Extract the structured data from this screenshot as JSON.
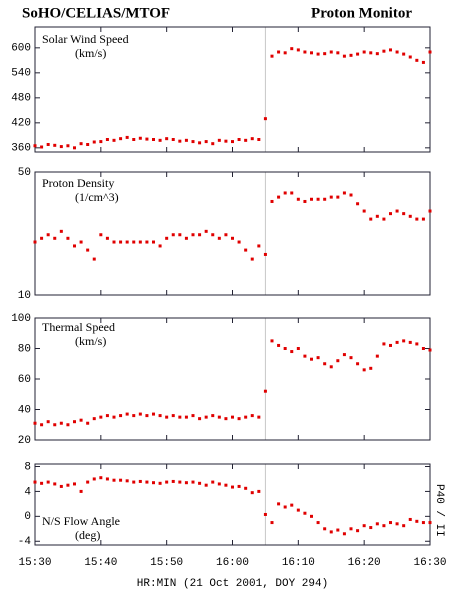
{
  "header": {
    "left": "SoHO/CELIAS/MTOF",
    "right": "Proton Monitor"
  },
  "chart_data": [
    {
      "type": "scatter",
      "title": "Solar Wind Speed",
      "unit": "(km/s)",
      "color": "#e00000",
      "log": false,
      "xlim": [
        930,
        990
      ],
      "vline": 965,
      "ylim": [
        350,
        650
      ],
      "yticks": [
        360,
        420,
        480,
        540,
        600
      ],
      "x": [
        930,
        931,
        932,
        933,
        934,
        935,
        936,
        937,
        938,
        939,
        940,
        941,
        942,
        943,
        944,
        945,
        946,
        947,
        948,
        949,
        950,
        951,
        952,
        953,
        954,
        955,
        956,
        957,
        958,
        959,
        960,
        961,
        962,
        963,
        964,
        965,
        966,
        967,
        968,
        969,
        970,
        971,
        972,
        973,
        974,
        975,
        976,
        977,
        978,
        979,
        980,
        981,
        982,
        983,
        984,
        985,
        986,
        987,
        988,
        989,
        990
      ],
      "values": [
        365,
        362,
        368,
        366,
        363,
        365,
        360,
        370,
        368,
        374,
        375,
        380,
        378,
        382,
        385,
        380,
        383,
        381,
        380,
        378,
        382,
        380,
        376,
        378,
        375,
        372,
        375,
        370,
        378,
        376,
        375,
        380,
        378,
        382,
        380,
        430,
        580,
        590,
        588,
        598,
        595,
        590,
        588,
        585,
        586,
        590,
        588,
        580,
        582,
        585,
        590,
        588,
        586,
        592,
        595,
        590,
        585,
        578,
        570,
        565,
        590
      ]
    },
    {
      "type": "scatter",
      "title": "Proton Density",
      "unit": "(1/cm^3)",
      "color": "#e00000",
      "log": true,
      "xlim": [
        930,
        990
      ],
      "vline": 965,
      "ylim": [
        10,
        50
      ],
      "yticks": [
        10,
        50
      ],
      "x": [
        930,
        931,
        932,
        933,
        934,
        935,
        936,
        937,
        938,
        939,
        940,
        941,
        942,
        943,
        944,
        945,
        946,
        947,
        948,
        949,
        950,
        951,
        952,
        953,
        954,
        955,
        956,
        957,
        958,
        959,
        960,
        961,
        962,
        963,
        964,
        965,
        966,
        967,
        968,
        969,
        970,
        971,
        972,
        973,
        974,
        975,
        976,
        977,
        978,
        979,
        980,
        981,
        982,
        983,
        984,
        985,
        986,
        987,
        988,
        989,
        990
      ],
      "values": [
        20,
        21,
        22,
        21,
        23,
        21,
        19,
        20,
        18,
        16,
        22,
        21,
        20,
        20,
        20,
        20,
        20,
        20,
        20,
        19,
        21,
        22,
        22,
        21,
        22,
        22,
        23,
        22,
        21,
        22,
        21,
        20,
        18,
        16,
        19,
        17,
        34,
        36,
        38,
        38,
        35,
        34,
        35,
        35,
        35,
        36,
        36,
        38,
        37,
        33,
        30,
        27,
        28,
        27,
        29,
        30,
        29,
        28,
        27,
        27,
        30
      ]
    },
    {
      "type": "scatter",
      "title": "Thermal Speed",
      "unit": "(km/s)",
      "color": "#e00000",
      "log": false,
      "xlim": [
        930,
        990
      ],
      "vline": 965,
      "ylim": [
        20,
        100
      ],
      "yticks": [
        20,
        40,
        60,
        80,
        100
      ],
      "x": [
        930,
        931,
        932,
        933,
        934,
        935,
        936,
        937,
        938,
        939,
        940,
        941,
        942,
        943,
        944,
        945,
        946,
        947,
        948,
        949,
        950,
        951,
        952,
        953,
        954,
        955,
        956,
        957,
        958,
        959,
        960,
        961,
        962,
        963,
        964,
        965,
        966,
        967,
        968,
        969,
        970,
        971,
        972,
        973,
        974,
        975,
        976,
        977,
        978,
        979,
        980,
        981,
        982,
        983,
        984,
        985,
        986,
        987,
        988,
        989,
        990
      ],
      "values": [
        31,
        30,
        32,
        30,
        31,
        30,
        32,
        33,
        31,
        34,
        35,
        36,
        35,
        36,
        37,
        36,
        37,
        36,
        37,
        36,
        35,
        36,
        35,
        35,
        36,
        34,
        35,
        36,
        35,
        34,
        35,
        34,
        35,
        36,
        35,
        52,
        85,
        82,
        80,
        78,
        80,
        75,
        73,
        74,
        70,
        68,
        72,
        76,
        74,
        70,
        66,
        67,
        75,
        83,
        82,
        84,
        85,
        84,
        83,
        80,
        79
      ]
    },
    {
      "type": "scatter",
      "title": "N/S Flow Angle",
      "unit": "(deg)",
      "color": "#e00000",
      "log": false,
      "xlim": [
        930,
        990
      ],
      "vline": 965,
      "side_note": "P40 / II",
      "ylim": [
        -4.6,
        8.4
      ],
      "yticks": [
        -4,
        0,
        4,
        8
      ],
      "xticks": [
        {
          "value": 930,
          "label": "15:30"
        },
        {
          "value": 940,
          "label": "15:40"
        },
        {
          "value": 950,
          "label": "15:50"
        },
        {
          "value": 960,
          "label": "16:00"
        },
        {
          "value": 970,
          "label": "16:10"
        },
        {
          "value": 980,
          "label": "16:20"
        },
        {
          "value": 990,
          "label": "16:30"
        }
      ],
      "xlabel": "HR:MIN (21 Oct 2001, DOY 294)",
      "x": [
        930,
        931,
        932,
        933,
        934,
        935,
        936,
        937,
        938,
        939,
        940,
        941,
        942,
        943,
        944,
        945,
        946,
        947,
        948,
        949,
        950,
        951,
        952,
        953,
        954,
        955,
        956,
        957,
        958,
        959,
        960,
        961,
        962,
        963,
        964,
        965,
        966,
        967,
        968,
        969,
        970,
        971,
        972,
        973,
        974,
        975,
        976,
        977,
        978,
        979,
        980,
        981,
        982,
        983,
        984,
        985,
        986,
        987,
        988,
        989,
        990
      ],
      "values": [
        5.5,
        5.3,
        5.5,
        5.2,
        4.8,
        5.0,
        5.2,
        4.0,
        5.5,
        6.0,
        6.2,
        6.0,
        5.8,
        5.8,
        5.7,
        5.5,
        5.6,
        5.5,
        5.4,
        5.3,
        5.5,
        5.6,
        5.5,
        5.4,
        5.5,
        5.3,
        5.0,
        5.5,
        5.2,
        5.0,
        4.7,
        4.8,
        4.5,
        3.8,
        4.0,
        0.3,
        -1.0,
        2.0,
        1.5,
        1.8,
        1.0,
        0.5,
        0.0,
        -1.0,
        -2.0,
        -2.5,
        -2.2,
        -2.8,
        -2.0,
        -2.3,
        -1.5,
        -1.8,
        -1.2,
        -1.5,
        -1.0,
        -1.2,
        -1.5,
        -0.5,
        -0.8,
        -1.0,
        -1.0
      ]
    }
  ]
}
